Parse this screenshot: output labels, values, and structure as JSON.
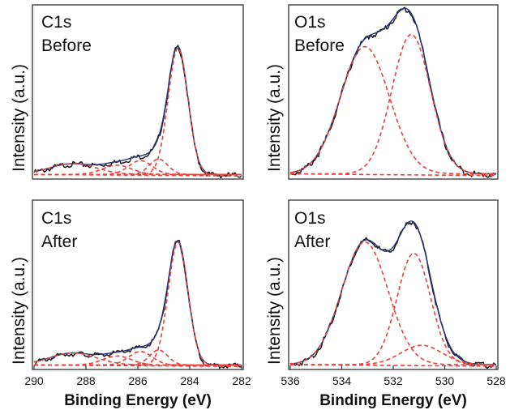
{
  "colors": {
    "measured": "#1a1a1a",
    "fit": "#24347a",
    "component": "#e8413c"
  },
  "chart_data": [
    {
      "type": "line",
      "id": "c1s-before",
      "title": [
        "C1s",
        "Before"
      ],
      "ylabel": "Intensity (a.u.)",
      "xlabel": "",
      "xlim": [
        290,
        282
      ],
      "ylim": [
        0,
        1.13
      ],
      "xticks": [],
      "grid": false,
      "baseline": 0.03,
      "components": [
        {
          "center": 284.45,
          "height": 0.82,
          "width": 0.38
        },
        {
          "center": 285.2,
          "height": 0.1,
          "width": 0.35
        },
        {
          "center": 285.9,
          "height": 0.09,
          "width": 0.45
        },
        {
          "center": 286.8,
          "height": 0.06,
          "width": 0.55
        },
        {
          "center": 288.5,
          "height": 0.07,
          "width": 0.9
        }
      ]
    },
    {
      "type": "line",
      "id": "o1s-before",
      "title": [
        "O1s",
        "Before"
      ],
      "ylabel": "Intensity (a.u.)",
      "xlabel": "",
      "xlim": [
        536,
        528
      ],
      "ylim": [
        0,
        1.0
      ],
      "xticks": [],
      "grid": false,
      "baseline": 0.03,
      "components": [
        {
          "center": 533.1,
          "height": 0.73,
          "width": 0.95
        },
        {
          "center": 531.3,
          "height": 0.8,
          "width": 0.75
        }
      ]
    },
    {
      "type": "line",
      "id": "c1s-after",
      "title": [
        "C1s",
        "After"
      ],
      "ylabel": "Intensity (a.u.)",
      "xlabel": "Binding Energy (eV)",
      "xlim": [
        290,
        282
      ],
      "ylim": [
        0,
        1.13
      ],
      "xticks": [
        "290",
        "288",
        "286",
        "284",
        "282"
      ],
      "grid": false,
      "baseline": 0.03,
      "components": [
        {
          "center": 284.45,
          "height": 0.82,
          "width": 0.38
        },
        {
          "center": 285.2,
          "height": 0.1,
          "width": 0.35
        },
        {
          "center": 285.9,
          "height": 0.09,
          "width": 0.45
        },
        {
          "center": 286.8,
          "height": 0.06,
          "width": 0.55
        },
        {
          "center": 288.5,
          "height": 0.08,
          "width": 0.9
        }
      ]
    },
    {
      "type": "line",
      "id": "o1s-after",
      "title": [
        "O1s",
        "After"
      ],
      "ylabel": "Intensity (a.u.)",
      "xlabel": "Binding Energy (eV)",
      "xlim": [
        536,
        528
      ],
      "ylim": [
        0,
        1.05
      ],
      "xticks": [
        "536",
        "534",
        "532",
        "530",
        "528"
      ],
      "grid": false,
      "baseline": 0.03,
      "components": [
        {
          "center": 533.1,
          "height": 0.76,
          "width": 0.9
        },
        {
          "center": 531.2,
          "height": 0.69,
          "width": 0.65
        },
        {
          "center": 530.9,
          "height": 0.12,
          "width": 0.8
        }
      ]
    }
  ]
}
